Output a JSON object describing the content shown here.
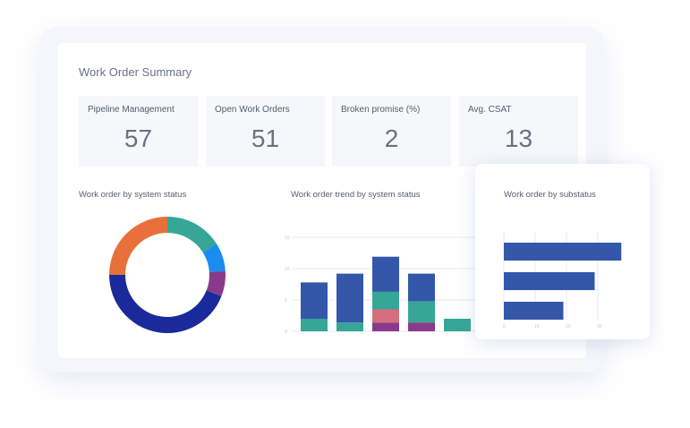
{
  "header": {
    "title": "Work Order Summary"
  },
  "kpis": [
    {
      "label": "Pipeline Management",
      "value": "57"
    },
    {
      "label": "Open Work Orders",
      "value": "51"
    },
    {
      "label": "Broken promise (%)",
      "value": "2"
    },
    {
      "label": "Avg. CSAT",
      "value": "13"
    }
  ],
  "colors": {
    "teal": "#36a697",
    "blue": "#1a8cf0",
    "purple": "#8a3a8a",
    "navy": "#1a2a9a",
    "orange": "#e8703a",
    "bar_blue": "#3457aa",
    "pink": "#d66e7c"
  },
  "chart_data": [
    {
      "type": "pie",
      "title": "Work order by system status",
      "slices": [
        {
          "value": 16,
          "color": "#36a697"
        },
        {
          "value": 8,
          "color": "#1a8cf0"
        },
        {
          "value": 7,
          "color": "#8a3a8a"
        },
        {
          "value": 44,
          "color": "#1a2a9a"
        },
        {
          "value": 25,
          "color": "#e8703a"
        }
      ]
    },
    {
      "type": "bar",
      "stacked": true,
      "title": "Work order trend by system status",
      "ylim": [
        0,
        15
      ],
      "yticks": [
        "0",
        "5",
        "10",
        "15"
      ],
      "grid": true,
      "series": [
        {
          "color": "#8a3a8a",
          "values": [
            0,
            0,
            1.4,
            1.4,
            0
          ]
        },
        {
          "color": "#d66e7c",
          "values": [
            0,
            0,
            2.1,
            0,
            0
          ]
        },
        {
          "color": "#36a697",
          "values": [
            2,
            1.4,
            2.8,
            3.4,
            2
          ]
        },
        {
          "color": "#3457aa",
          "values": [
            5.8,
            7.8,
            5.6,
            4.4,
            0
          ]
        }
      ]
    },
    {
      "type": "bar",
      "orientation": "horizontal",
      "title": "Work order by substatus",
      "xlim": [
        0,
        40
      ],
      "xticks": [
        "0",
        "10",
        "20",
        "30"
      ],
      "values": [
        37.5,
        29,
        19
      ],
      "color": "#3457aa"
    }
  ]
}
